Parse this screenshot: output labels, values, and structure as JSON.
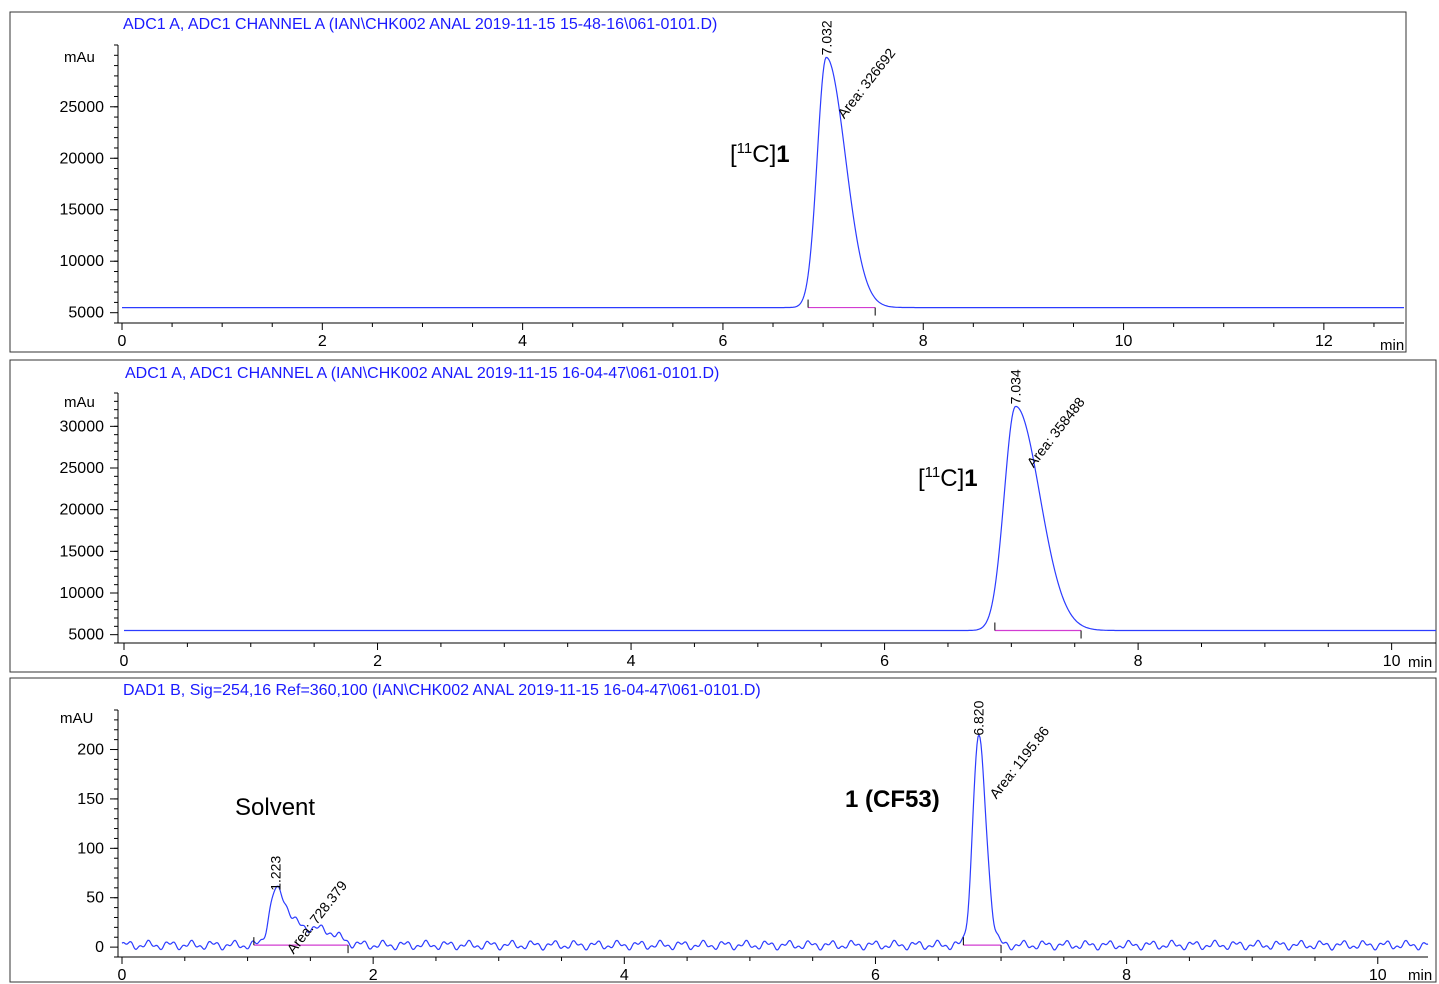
{
  "chart_data": [
    {
      "type": "line",
      "title": "ADC1 A, ADC1 CHANNEL A (IAN\\CHK002 ANAL 2019-11-15 15-48-16\\061-0101.D)",
      "ylabel": "mAu",
      "xunit": "min",
      "xlim": [
        0,
        12.8
      ],
      "ylim": [
        4000,
        31000
      ],
      "xticks": [
        0,
        2,
        4,
        6,
        8,
        10,
        12
      ],
      "yticks": [
        5000,
        10000,
        15000,
        20000,
        25000
      ],
      "baseline": 5500,
      "peaks": [
        {
          "rt": 7.032,
          "rt_label": "7.032",
          "area_label": "Area: 326692",
          "height": 29800,
          "start": 6.85,
          "end": 7.52,
          "width": 0.09,
          "tail": 0.19,
          "compound": "[11C]1"
        }
      ]
    },
    {
      "type": "line",
      "title": "ADC1 A, ADC1 CHANNEL A (IAN\\CHK002 ANAL 2019-11-15 16-04-47\\061-0101.D)",
      "ylabel": "mAu",
      "xunit": "min",
      "xlim": [
        0,
        10.35
      ],
      "ylim": [
        4000,
        34000
      ],
      "xticks": [
        0,
        2,
        4,
        6,
        8,
        10
      ],
      "yticks": [
        5000,
        10000,
        15000,
        20000,
        25000,
        30000
      ],
      "baseline": 5500,
      "peaks": [
        {
          "rt": 7.034,
          "rt_label": "7.034",
          "area_label": "Area: 358488",
          "height": 32400,
          "start": 6.87,
          "end": 7.55,
          "width": 0.09,
          "tail": 0.19,
          "compound": "[11C]1"
        }
      ]
    },
    {
      "type": "line",
      "title": "DAD1 B, Sig=254,16 Ref=360,100 (IAN\\CHK002 ANAL 2019-11-15 16-04-47\\061-0101.D)",
      "ylabel": "mAU",
      "xunit": "min",
      "xlim": [
        0,
        10.4
      ],
      "ylim": [
        -10,
        240
      ],
      "xticks": [
        0,
        2,
        4,
        6,
        8,
        10
      ],
      "yticks": [
        0,
        50,
        100,
        150,
        200
      ],
      "baseline": 2,
      "peaks": [
        {
          "rt": 1.223,
          "rt_label": "1.223",
          "area_label": "Area: 728.379",
          "height": 55,
          "start": 1.05,
          "end": 1.8,
          "width": 0.05,
          "tail": 0.09,
          "compound": "Solvent"
        },
        {
          "rt": 6.82,
          "rt_label": "6.820",
          "area_label": "Area: 1195.86",
          "height": 212,
          "start": 6.7,
          "end": 7.0,
          "width": 0.045,
          "tail": 0.06,
          "compound": "1 (CF53)"
        }
      ]
    }
  ]
}
